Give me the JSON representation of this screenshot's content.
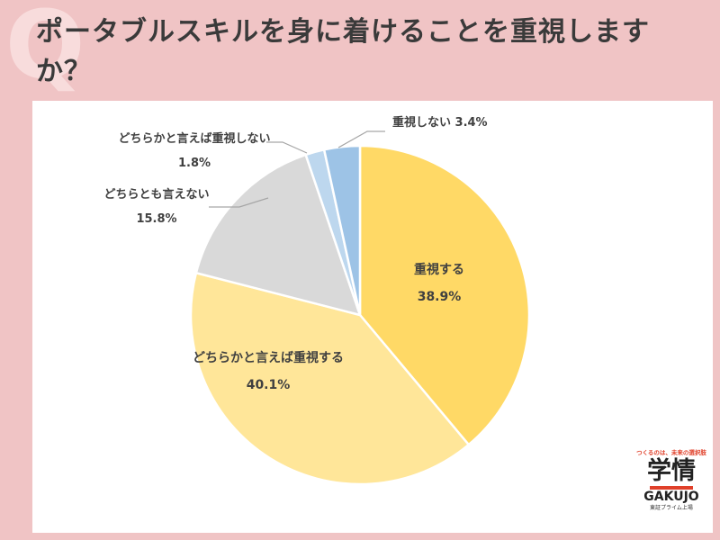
{
  "title": "ポータブルスキルを身に着けることを重視しますか？",
  "q_mark": "Q",
  "chart_data": {
    "type": "pie",
    "start_angle": 0,
    "direction": "clockwise",
    "slices": [
      {
        "label": "重視する",
        "value": 38.9,
        "display": "38.9%",
        "color": "#ffd966",
        "label_placement": "inside"
      },
      {
        "label": "どちらかと言えば重視する",
        "value": 40.1,
        "display": "40.1%",
        "color": "#ffe699",
        "label_placement": "inside"
      },
      {
        "label": "どちらとも言えない",
        "value": 15.8,
        "display": "15.8%",
        "color": "#d9d9d9",
        "label_placement": "outside"
      },
      {
        "label": "どちらかと言えば重視しない",
        "value": 1.8,
        "display": "1.8%",
        "color": "#bdd7ee",
        "label_placement": "outside"
      },
      {
        "label": "重視しない",
        "value": 3.4,
        "display": "3.4%",
        "color": "#9dc3e6",
        "label_placement": "outside"
      }
    ]
  },
  "logo": {
    "tagline": "つくるのは、未来の選択肢",
    "mark": "学情",
    "english": "GAKUJO",
    "sub": "東証プライム上場"
  }
}
